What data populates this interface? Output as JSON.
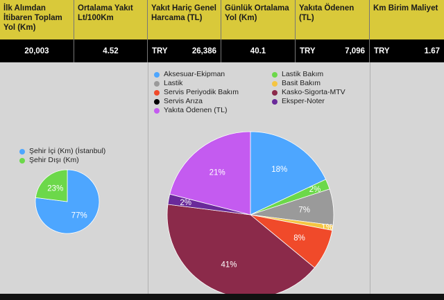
{
  "kpis": [
    {
      "header": "İlk Alımdan İtibaren Toplam Yol (Km)",
      "currency": "",
      "value": "20,003"
    },
    {
      "header": "Ortalama Yakıt Lt/100Km",
      "currency": "",
      "value": "4.52"
    },
    {
      "header": "Yakıt Hariç Genel Harcama (TL)",
      "currency": "TRY",
      "value": "26,386"
    },
    {
      "header": "Günlük Ortalama Yol (Km)",
      "currency": "",
      "value": "40.1"
    },
    {
      "header": "Yakıta Ödenen (TL)",
      "currency": "TRY",
      "value": "7,096"
    },
    {
      "header": "Km Birim Maliyet",
      "currency": "TRY",
      "value": "1.67"
    }
  ],
  "chart_data": [
    {
      "type": "pie",
      "legend_position": "top-left",
      "slices": [
        {
          "label": "Şehir İçi (Km) (İstanbul)",
          "value": 77,
          "display": "77%",
          "color": "#4da6ff"
        },
        {
          "label": "Şehir Dışı (Km)",
          "value": 23,
          "display": "23%",
          "color": "#6cd84a"
        }
      ]
    },
    {
      "type": "pie",
      "legend_position": "top",
      "slices": [
        {
          "label": "Aksesuar-Ekipman",
          "value": 18,
          "display": "18%",
          "color": "#4da6ff"
        },
        {
          "label": "Lastik Bakım",
          "value": 2,
          "display": "2%",
          "color": "#6cd84a"
        },
        {
          "label": "Lastik",
          "value": 7,
          "display": "7%",
          "color": "#9a9a9a"
        },
        {
          "label": "Basit Bakım",
          "value": 1,
          "display": "1%",
          "color": "#f5c542"
        },
        {
          "label": "Servis Periyodik Bakım",
          "value": 8,
          "display": "8%",
          "color": "#f04a2a"
        },
        {
          "label": "Servis Arıza",
          "value": 0,
          "display": "",
          "color": "#000000"
        },
        {
          "label": "Kasko-Sigorta-MTV",
          "value": 41,
          "display": "41%",
          "color": "#8b2a4a"
        },
        {
          "label": "Eksper-Noter",
          "value": 2,
          "display": "2%",
          "color": "#6a2a9a"
        },
        {
          "label": "Yakıta Ödenen (TL)",
          "value": 21,
          "display": "21%",
          "color": "#c45bf0"
        }
      ]
    }
  ]
}
